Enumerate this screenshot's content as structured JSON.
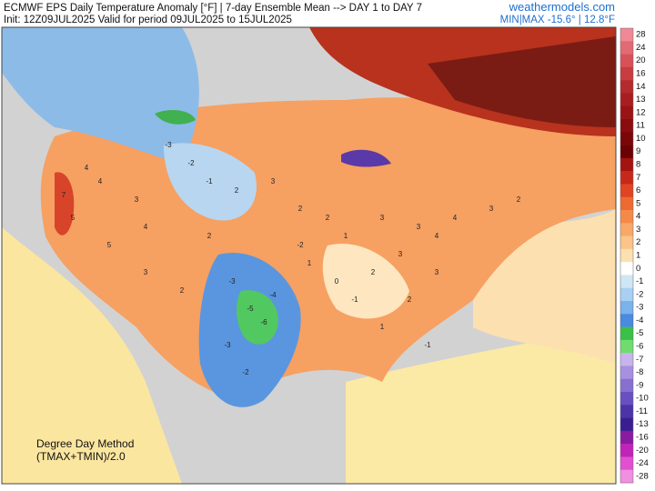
{
  "header": {
    "title": "ECMWF EPS Daily Temperature Anomaly [°F] | 7-day Ensemble Mean --> DAY 1 to DAY 7",
    "subtitle": "Init: 12Z09JUL2025 Valid for period 09JUL2025 to 15JUL2025",
    "site": "weathermodels.com",
    "minmax": "MIN|MAX -15.6° | 12.8°F"
  },
  "note": {
    "line1": "Degree Day Method",
    "line2": "(TMAX+TMIN)/2.0"
  },
  "colorbar": {
    "levels": [
      28,
      24,
      20,
      16,
      14,
      13,
      12,
      11,
      10,
      9,
      8,
      7,
      6,
      5,
      4,
      3,
      2,
      1,
      0,
      -1,
      -2,
      -3,
      -4,
      -5,
      -6,
      -7,
      -8,
      -9,
      -10,
      -11,
      -13,
      -16,
      -20,
      -24,
      -28
    ],
    "colors": [
      "#f08896",
      "#e26a74",
      "#d85058",
      "#c93c40",
      "#b52a2c",
      "#a81e20",
      "#9a1416",
      "#8a0c0e",
      "#7a0608",
      "#6c0204",
      "#a31410",
      "#c8281a",
      "#e04422",
      "#ef6a30",
      "#f58a48",
      "#f8a868",
      "#fbc488",
      "#fde0b0",
      "#ffffff",
      "#cfe6f6",
      "#a8d0f2",
      "#7ab2ec",
      "#4a8ae0",
      "#3ac048",
      "#70dc70",
      "#c8b4ec",
      "#a890e0",
      "#8870d0",
      "#6850c0",
      "#4c34a8",
      "#3a1e90",
      "#8a1aa0",
      "#c024b8",
      "#e050d0",
      "#f090e0"
    ]
  },
  "station_values": [
    4,
    4,
    7,
    5,
    3,
    -3,
    -2,
    -1,
    2,
    3,
    2,
    2,
    1,
    3,
    3,
    4,
    3,
    2,
    -3,
    -5,
    -6,
    -4,
    -3,
    -2,
    1,
    0,
    -1,
    2,
    3,
    4,
    5,
    3,
    2,
    -2,
    1,
    2,
    3,
    4,
    2,
    -1
  ]
}
